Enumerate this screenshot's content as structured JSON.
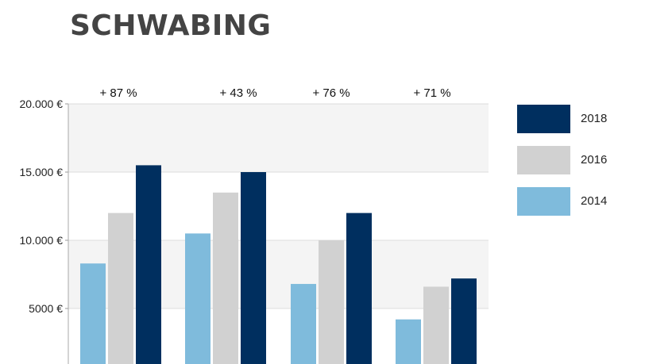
{
  "title": "SCHWABING",
  "chart_data": {
    "type": "bar",
    "title": "SCHWABING",
    "categories": [
      "",
      "",
      "",
      ""
    ],
    "group_annotations": [
      "+ 87 %",
      "+ 43 %",
      "+ 76 %",
      "+ 71 %"
    ],
    "series": [
      {
        "name": "2014",
        "color": "#7fbbdc",
        "values": [
          8300,
          10500,
          6800,
          4200
        ]
      },
      {
        "name": "2016",
        "color": "#d1d1d1",
        "values": [
          12000,
          13500,
          10000,
          6600
        ]
      },
      {
        "name": "2018",
        "color": "#002f5f",
        "values": [
          15500,
          15000,
          12000,
          7200
        ]
      }
    ],
    "y_ticks": [
      {
        "value": 5000,
        "label": "5000 €"
      },
      {
        "value": 10000,
        "label": "10.000 €"
      },
      {
        "value": 15000,
        "label": "15.000 €"
      },
      {
        "value": 20000,
        "label": "20.000 €"
      }
    ],
    "ylim": [
      1300,
      20000
    ],
    "legend_order": [
      "2018",
      "2016",
      "2014"
    ],
    "legend_position": "right",
    "grid": true,
    "bands": true
  }
}
